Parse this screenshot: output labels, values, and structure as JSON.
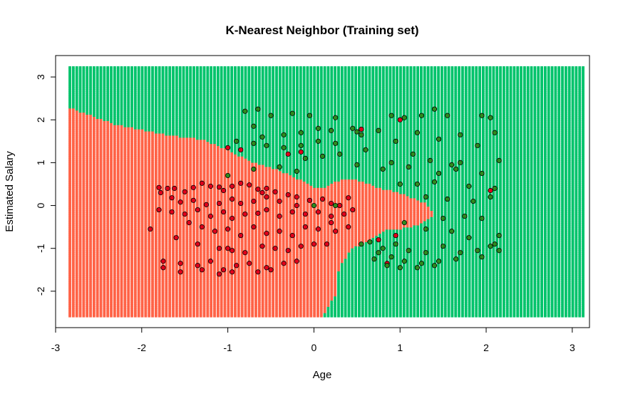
{
  "chart_data": {
    "type": "scatter",
    "title": "K-Nearest Neighbor (Training set)",
    "xlabel": "Age",
    "ylabel": "Estimated Salary",
    "xlim": [
      -3.0,
      3.2
    ],
    "ylim": [
      -2.85,
      3.5
    ],
    "xticks": [
      -3,
      -2,
      -1,
      0,
      1,
      2,
      3
    ],
    "yticks": [
      -2,
      -1,
      0,
      1,
      2,
      3
    ],
    "grid": false,
    "colors": {
      "region_0": "#FF6347",
      "region_1": "#00C36B",
      "point_0": "#E0001B",
      "point_1": "#2E8B1E",
      "point_border": "#000000"
    },
    "series": [
      {
        "values": [
          [
            -1.8,
            0.42
          ],
          [
            -1.78,
            0.3
          ],
          [
            -1.7,
            0.4
          ],
          [
            -1.62,
            0.4
          ],
          [
            -1.5,
            0.32
          ],
          [
            -1.4,
            0.42
          ],
          [
            -1.3,
            0.52
          ],
          [
            -1.2,
            0.45
          ],
          [
            -1.1,
            0.43
          ],
          [
            -1.05,
            0.35
          ],
          [
            -0.95,
            0.45
          ],
          [
            -0.85,
            0.52
          ],
          [
            -0.75,
            0.48
          ],
          [
            -0.65,
            0.38
          ],
          [
            -0.55,
            0.4
          ],
          [
            -0.45,
            0.32
          ],
          [
            -1.65,
            0.18
          ],
          [
            -1.55,
            0.08
          ],
          [
            -1.4,
            0.12
          ],
          [
            -1.25,
            0.02
          ],
          [
            -1.1,
            0.05
          ],
          [
            -0.95,
            0.15
          ],
          [
            -0.85,
            0.05
          ],
          [
            -0.7,
            0.1
          ],
          [
            -0.55,
            0.2
          ],
          [
            -0.4,
            0.1
          ],
          [
            -0.3,
            0.25
          ],
          [
            -0.2,
            0.2
          ],
          [
            -0.05,
            0.12
          ],
          [
            0.1,
            0.15
          ],
          [
            0.2,
            0.05
          ],
          [
            0.3,
            0.0
          ],
          [
            0.4,
            0.18
          ],
          [
            -1.8,
            -0.1
          ],
          [
            -1.65,
            -0.15
          ],
          [
            -1.5,
            -0.2
          ],
          [
            -1.35,
            -0.1
          ],
          [
            -1.2,
            -0.25
          ],
          [
            -1.05,
            -0.15
          ],
          [
            -0.95,
            -0.3
          ],
          [
            -0.8,
            -0.2
          ],
          [
            -0.65,
            -0.18
          ],
          [
            -0.55,
            -0.1
          ],
          [
            -0.4,
            -0.25
          ],
          [
            -0.25,
            -0.15
          ],
          [
            -0.1,
            -0.2
          ],
          [
            0.05,
            -0.15
          ],
          [
            0.2,
            -0.25
          ],
          [
            0.35,
            -0.2
          ],
          [
            0.45,
            -0.1
          ],
          [
            -1.45,
            -0.4
          ],
          [
            -1.3,
            -0.5
          ],
          [
            -1.15,
            -0.6
          ],
          [
            -1.0,
            -0.55
          ],
          [
            -0.85,
            -0.7
          ],
          [
            -0.7,
            -0.5
          ],
          [
            -0.55,
            -0.65
          ],
          [
            -0.4,
            -0.6
          ],
          [
            -0.25,
            -0.7
          ],
          [
            -0.1,
            -0.5
          ],
          [
            0.05,
            -0.55
          ],
          [
            0.25,
            -0.6
          ],
          [
            0.4,
            -0.5
          ],
          [
            -1.9,
            -0.55
          ],
          [
            -1.6,
            -0.75
          ],
          [
            -1.35,
            -0.9
          ],
          [
            -1.1,
            -1.0
          ],
          [
            -0.95,
            -1.05
          ],
          [
            -0.8,
            -1.1
          ],
          [
            -0.6,
            -0.95
          ],
          [
            -0.45,
            -1.0
          ],
          [
            -0.3,
            -1.05
          ],
          [
            -0.15,
            -0.95
          ],
          [
            0.0,
            -0.9
          ],
          [
            0.15,
            -0.9
          ],
          [
            -1.75,
            -1.3
          ],
          [
            -1.55,
            -1.35
          ],
          [
            -1.35,
            -1.4
          ],
          [
            -1.2,
            -1.3
          ],
          [
            -1.05,
            -1.5
          ],
          [
            -0.9,
            -1.4
          ],
          [
            -0.75,
            -1.35
          ],
          [
            -0.55,
            -1.45
          ],
          [
            -0.35,
            -1.35
          ],
          [
            -0.2,
            -1.3
          ],
          [
            -1.75,
            -1.45
          ],
          [
            -1.55,
            -1.55
          ],
          [
            -1.3,
            -1.5
          ],
          [
            -1.1,
            -1.6
          ],
          [
            -0.95,
            -1.55
          ],
          [
            -0.65,
            -1.55
          ],
          [
            -0.5,
            -1.5
          ],
          [
            -1.0,
            1.35
          ],
          [
            -0.85,
            1.3
          ],
          [
            -0.3,
            1.2
          ],
          [
            -0.15,
            1.25
          ],
          [
            0.55,
            1.78
          ],
          [
            0.75,
            -0.8
          ],
          [
            0.85,
            -1.35
          ],
          [
            0.95,
            -0.7
          ],
          [
            1.0,
            2.0
          ],
          [
            2.05,
            0.35
          ],
          [
            -1.0,
            -1.0
          ],
          [
            -0.2,
            0.0
          ],
          [
            0.2,
            -0.4
          ],
          [
            -0.6,
            0.3
          ]
        ]
      },
      {
        "values": [
          [
            -0.8,
            2.2
          ],
          [
            -0.65,
            2.25
          ],
          [
            -0.5,
            2.1
          ],
          [
            -0.25,
            2.15
          ],
          [
            -0.05,
            2.1
          ],
          [
            0.25,
            2.05
          ],
          [
            -0.7,
            1.85
          ],
          [
            -0.6,
            1.6
          ],
          [
            -0.35,
            1.65
          ],
          [
            -0.15,
            1.7
          ],
          [
            0.05,
            1.8
          ],
          [
            0.2,
            1.75
          ],
          [
            0.45,
            1.8
          ],
          [
            0.75,
            1.75
          ],
          [
            0.9,
            2.1
          ],
          [
            1.05,
            2.05
          ],
          [
            1.25,
            2.1
          ],
          [
            1.4,
            2.25
          ],
          [
            1.55,
            2.1
          ],
          [
            1.95,
            2.1
          ],
          [
            2.05,
            2.05
          ],
          [
            -0.9,
            1.5
          ],
          [
            -0.7,
            1.45
          ],
          [
            -0.55,
            1.4
          ],
          [
            -0.35,
            1.35
          ],
          [
            -0.15,
            1.4
          ],
          [
            0.05,
            1.5
          ],
          [
            0.25,
            1.45
          ],
          [
            0.55,
            1.65
          ],
          [
            0.95,
            1.5
          ],
          [
            1.2,
            1.7
          ],
          [
            1.45,
            1.55
          ],
          [
            1.7,
            1.65
          ],
          [
            2.1,
            1.7
          ],
          [
            -0.1,
            1.1
          ],
          [
            0.1,
            1.15
          ],
          [
            0.3,
            1.2
          ],
          [
            0.6,
            1.3
          ],
          [
            0.9,
            1.0
          ],
          [
            1.15,
            1.2
          ],
          [
            1.35,
            1.05
          ],
          [
            1.7,
            1.0
          ],
          [
            1.9,
            1.4
          ],
          [
            2.15,
            1.05
          ],
          [
            -1.0,
            0.7
          ],
          [
            -0.7,
            0.85
          ],
          [
            -0.4,
            0.9
          ],
          [
            -0.2,
            0.8
          ],
          [
            0.5,
            0.95
          ],
          [
            0.8,
            0.85
          ],
          [
            1.1,
            0.9
          ],
          [
            1.45,
            0.75
          ],
          [
            1.65,
            0.85
          ],
          [
            1.95,
            0.75
          ],
          [
            1.0,
            0.5
          ],
          [
            1.2,
            0.5
          ],
          [
            1.4,
            0.55
          ],
          [
            1.8,
            0.45
          ],
          [
            2.1,
            0.4
          ],
          [
            1.3,
            0.2
          ],
          [
            1.55,
            0.15
          ],
          [
            1.85,
            0.1
          ],
          [
            2.05,
            0.2
          ],
          [
            1.5,
            -0.3
          ],
          [
            1.75,
            -0.25
          ],
          [
            1.95,
            -0.3
          ],
          [
            2.15,
            -0.7
          ],
          [
            1.05,
            -0.4
          ],
          [
            1.3,
            -0.55
          ],
          [
            1.6,
            -0.6
          ],
          [
            1.8,
            -0.75
          ],
          [
            2.1,
            -0.9
          ],
          [
            0.65,
            -0.85
          ],
          [
            0.8,
            -1.0
          ],
          [
            0.95,
            -0.9
          ],
          [
            1.1,
            -1.05
          ],
          [
            1.3,
            -1.1
          ],
          [
            1.5,
            -0.95
          ],
          [
            1.7,
            -1.1
          ],
          [
            1.9,
            -1.05
          ],
          [
            2.05,
            -0.95
          ],
          [
            0.7,
            -1.25
          ],
          [
            0.9,
            -1.2
          ],
          [
            1.05,
            -1.3
          ],
          [
            1.25,
            -1.35
          ],
          [
            1.45,
            -1.3
          ],
          [
            1.65,
            -1.25
          ],
          [
            1.95,
            -1.2
          ],
          [
            0.85,
            -1.4
          ],
          [
            1.0,
            -1.45
          ],
          [
            1.2,
            -1.45
          ],
          [
            1.4,
            -1.4
          ],
          [
            0.75,
            -1.1
          ],
          [
            0.55,
            -0.9
          ],
          [
            0.0,
            0.0
          ],
          [
            0.25,
            0.0
          ],
          [
            2.15,
            -1.05
          ],
          [
            1.6,
            0.95
          ],
          [
            0.5,
            1.72
          ]
        ]
      }
    ]
  }
}
